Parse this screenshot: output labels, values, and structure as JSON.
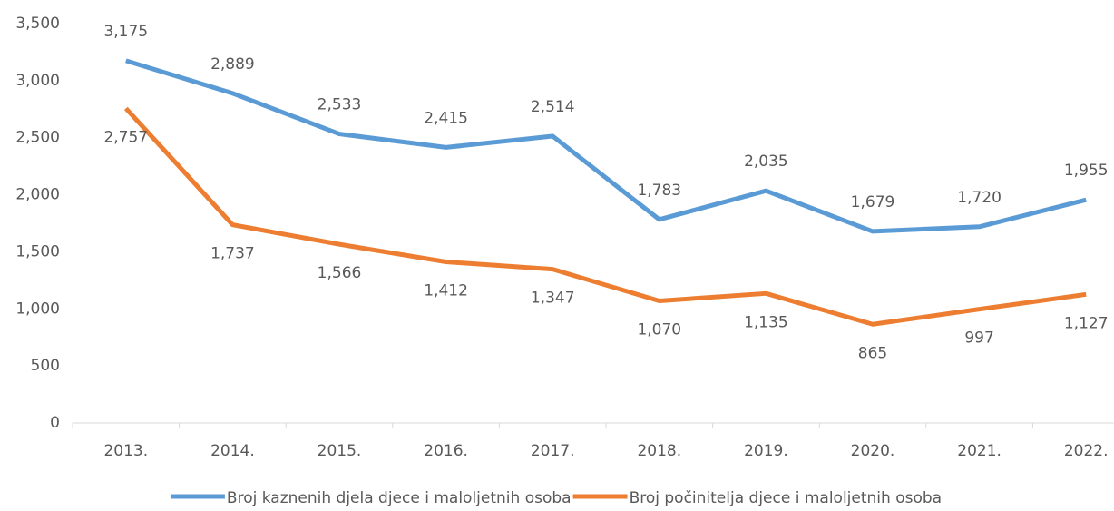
{
  "chart_data": {
    "type": "line",
    "categories": [
      "2013.",
      "2014.",
      "2015.",
      "2016.",
      "2017.",
      "2018.",
      "2019.",
      "2020.",
      "2021.",
      "2022."
    ],
    "series": [
      {
        "name": "Broj kaznenih djela djece i maloljetnih osoba",
        "color": "#5b9bd5",
        "values": [
          3175,
          2889,
          2533,
          2415,
          2514,
          1783,
          2035,
          1679,
          1720,
          1955
        ],
        "value_labels": [
          "3,175",
          "2,889",
          "2,533",
          "2,415",
          "2,514",
          "1,783",
          "2,035",
          "1,679",
          "1,720",
          "1,955"
        ]
      },
      {
        "name": "Broj počinitelja djece i maloljetnih osoba",
        "color": "#ed7d31",
        "values": [
          2757,
          1737,
          1566,
          1412,
          1347,
          1070,
          1135,
          865,
          997,
          1127
        ],
        "value_labels": [
          "2,757",
          "1,737",
          "1,566",
          "1,412",
          "1,347",
          "1,070",
          "1,135",
          "865",
          "997",
          "1,127"
        ]
      }
    ],
    "ylim": [
      0,
      3500
    ],
    "yticks": [
      0,
      500,
      {
        "value": 1000,
        "label": "1,000"
      },
      {
        "value": 1500,
        "label": "1,500"
      },
      {
        "value": 2000,
        "label": "2,000"
      },
      {
        "value": 2500,
        "label": "2,500"
      },
      {
        "value": 3000,
        "label": "3,000"
      },
      {
        "value": 3500,
        "label": "3,500"
      }
    ],
    "grid": false,
    "legend": "bottom"
  }
}
